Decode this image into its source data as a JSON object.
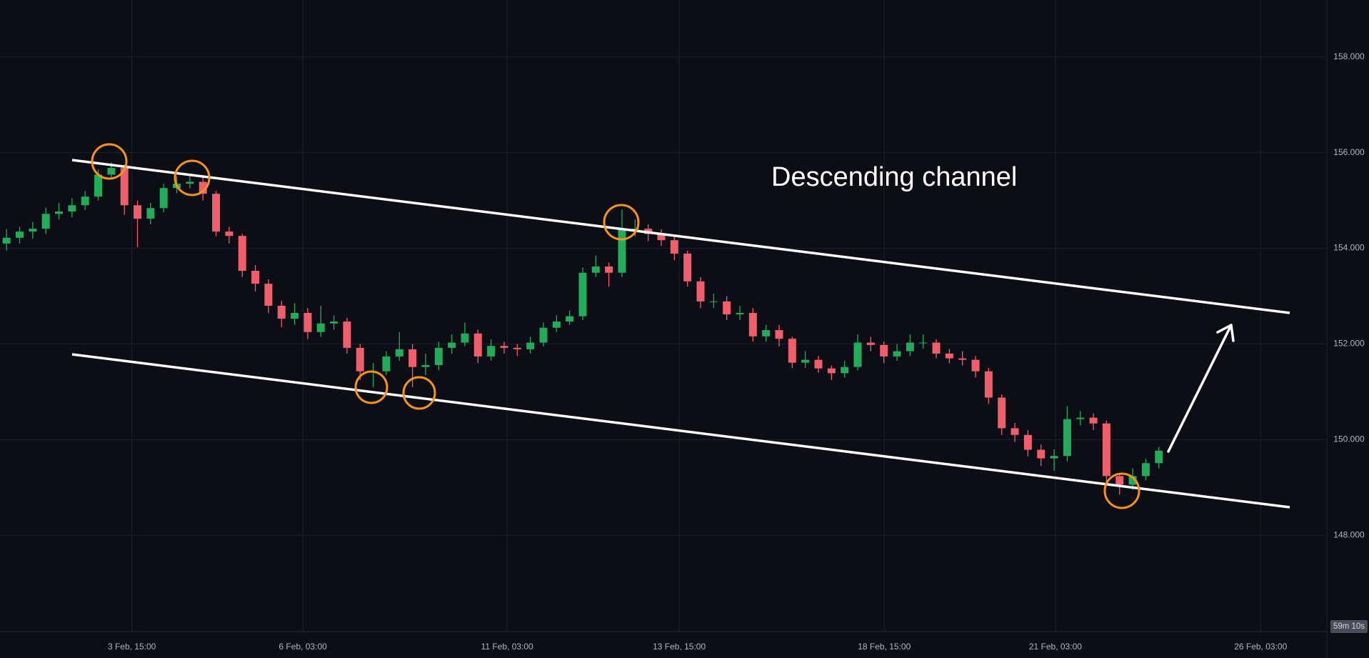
{
  "chart_data": {
    "type": "candlestick",
    "annotation": "Descending channel",
    "countdown": "59m 10s",
    "up_color": "#22ab5a",
    "down_color": "#ef5f6b",
    "grid": true,
    "xlim": [
      0,
      101.33
    ],
    "xticks": [
      {
        "value": 10.07,
        "label": "3 Feb, 15:00"
      },
      {
        "value": 23.13,
        "label": "6 Feb, 03:00"
      },
      {
        "value": 38.73,
        "label": "11 Feb, 03:00"
      },
      {
        "value": 51.87,
        "label": "13 Feb, 15:00"
      },
      {
        "value": 67.53,
        "label": "18 Feb, 15:00"
      },
      {
        "value": 80.6,
        "label": "21 Feb, 03:00"
      },
      {
        "value": 96.27,
        "label": "26 Feb, 03:00"
      }
    ],
    "ylim": [
      145.99,
      159.19
    ],
    "yticks": [
      {
        "value": 148,
        "label": "148.000"
      },
      {
        "value": 150,
        "label": "150.000"
      },
      {
        "value": 152,
        "label": "152.000"
      },
      {
        "value": 154,
        "label": "154.000"
      },
      {
        "value": 156,
        "label": "156.000"
      },
      {
        "value": 158,
        "label": "158.000"
      }
    ],
    "open": [
      154.1,
      154.22,
      154.35,
      154.41,
      154.72,
      154.77,
      154.9,
      155.08,
      155.54,
      155.68,
      154.9,
      154.62,
      154.84,
      155.26,
      155.35,
      155.39,
      155.14,
      154.35,
      154.26,
      153.53,
      153.26,
      152.8,
      152.53,
      152.65,
      152.25,
      152.43,
      152.47,
      151.92,
      151.43,
      151.43,
      151.74,
      151.89,
      151.52,
      151.56,
      151.92,
      152.03,
      152.22,
      151.74,
      151.96,
      151.92,
      151.89,
      152.03,
      152.34,
      152.47,
      152.58,
      153.49,
      153.62,
      153.49,
      154.41,
      154.41,
      154.3,
      154.17,
      153.89,
      153.31,
      152.89,
      152.89,
      152.62,
      152.65,
      152.16,
      152.29,
      152.11,
      151.61,
      151.67,
      151.49,
      151.39,
      151.52,
      152.03,
      151.98,
      151.74,
      151.85,
      152.03,
      152.03,
      151.8,
      151.7,
      151.67,
      151.43,
      150.88,
      150.24,
      150.1,
      149.79,
      149.61,
      149.66,
      150.43,
      150.46,
      150.34,
      149.24,
      149.06,
      149.24,
      149.51
    ],
    "high": [
      154.4,
      154.45,
      154.55,
      154.85,
      154.95,
      155.05,
      155.2,
      155.65,
      155.8,
      155.75,
      155.0,
      154.95,
      155.35,
      155.5,
      155.55,
      155.5,
      155.2,
      154.45,
      154.3,
      153.65,
      153.35,
      152.9,
      152.85,
      152.75,
      152.8,
      152.6,
      152.55,
      152.0,
      151.6,
      151.85,
      152.25,
      152.0,
      151.8,
      152.05,
      152.2,
      152.45,
      152.3,
      152.1,
      152.05,
      152.0,
      152.15,
      152.45,
      152.6,
      152.7,
      153.6,
      153.85,
      153.7,
      154.81,
      154.6,
      154.5,
      154.4,
      154.25,
      153.95,
      153.4,
      153.05,
      153.0,
      152.8,
      152.75,
      152.4,
      152.4,
      152.15,
      151.85,
      151.75,
      151.55,
      151.65,
      152.2,
      152.15,
      152.05,
      152.0,
      152.2,
      152.2,
      152.1,
      151.9,
      151.85,
      151.75,
      151.5,
      150.95,
      150.35,
      150.2,
      149.9,
      149.8,
      150.7,
      150.6,
      150.55,
      150.4,
      149.3,
      149.4,
      149.6,
      149.85
    ],
    "low": [
      153.95,
      154.1,
      154.2,
      154.3,
      154.6,
      154.65,
      154.8,
      155.0,
      155.45,
      154.7,
      154.02,
      154.5,
      154.75,
      155.15,
      155.25,
      155.0,
      154.25,
      154.1,
      153.4,
      153.1,
      152.65,
      152.35,
      152.4,
      152.1,
      152.15,
      152.3,
      151.8,
      151.25,
      151.1,
      151.35,
      151.65,
      151.1,
      151.35,
      151.45,
      151.8,
      151.95,
      151.6,
      151.65,
      151.8,
      151.75,
      151.8,
      151.95,
      152.25,
      152.4,
      152.5,
      153.4,
      153.2,
      153.4,
      154.25,
      154.15,
      154.05,
      153.75,
      153.2,
      152.75,
      152.75,
      152.5,
      152.5,
      152.05,
      152.05,
      151.95,
      151.5,
      151.5,
      151.4,
      151.25,
      151.3,
      151.45,
      151.85,
      151.6,
      151.65,
      151.75,
      151.9,
      151.7,
      151.6,
      151.55,
      151.3,
      150.75,
      150.1,
      149.95,
      149.65,
      149.45,
      149.35,
      149.55,
      150.3,
      150.2,
      149.1,
      148.85,
      148.95,
      149.15,
      149.4
    ],
    "close": [
      154.22,
      154.35,
      154.41,
      154.72,
      154.77,
      154.9,
      155.08,
      155.54,
      155.68,
      154.9,
      154.62,
      154.84,
      155.26,
      155.35,
      155.39,
      155.14,
      154.35,
      154.26,
      153.53,
      153.26,
      152.8,
      152.53,
      152.65,
      152.25,
      152.43,
      152.47,
      151.92,
      151.43,
      151.43,
      151.74,
      151.89,
      151.52,
      151.56,
      151.92,
      152.03,
      152.22,
      151.74,
      151.96,
      151.92,
      151.89,
      152.03,
      152.34,
      152.47,
      152.58,
      153.49,
      153.62,
      153.49,
      154.41,
      154.41,
      154.3,
      154.17,
      153.89,
      153.31,
      152.89,
      152.89,
      152.62,
      152.65,
      152.16,
      152.29,
      152.11,
      151.61,
      151.67,
      151.49,
      151.39,
      151.52,
      152.03,
      151.98,
      151.74,
      151.85,
      152.03,
      152.03,
      151.8,
      151.7,
      151.67,
      151.43,
      150.88,
      150.24,
      150.1,
      149.79,
      149.61,
      149.66,
      150.43,
      150.46,
      150.34,
      149.24,
      149.06,
      149.24,
      149.51,
      149.77
    ]
  }
}
